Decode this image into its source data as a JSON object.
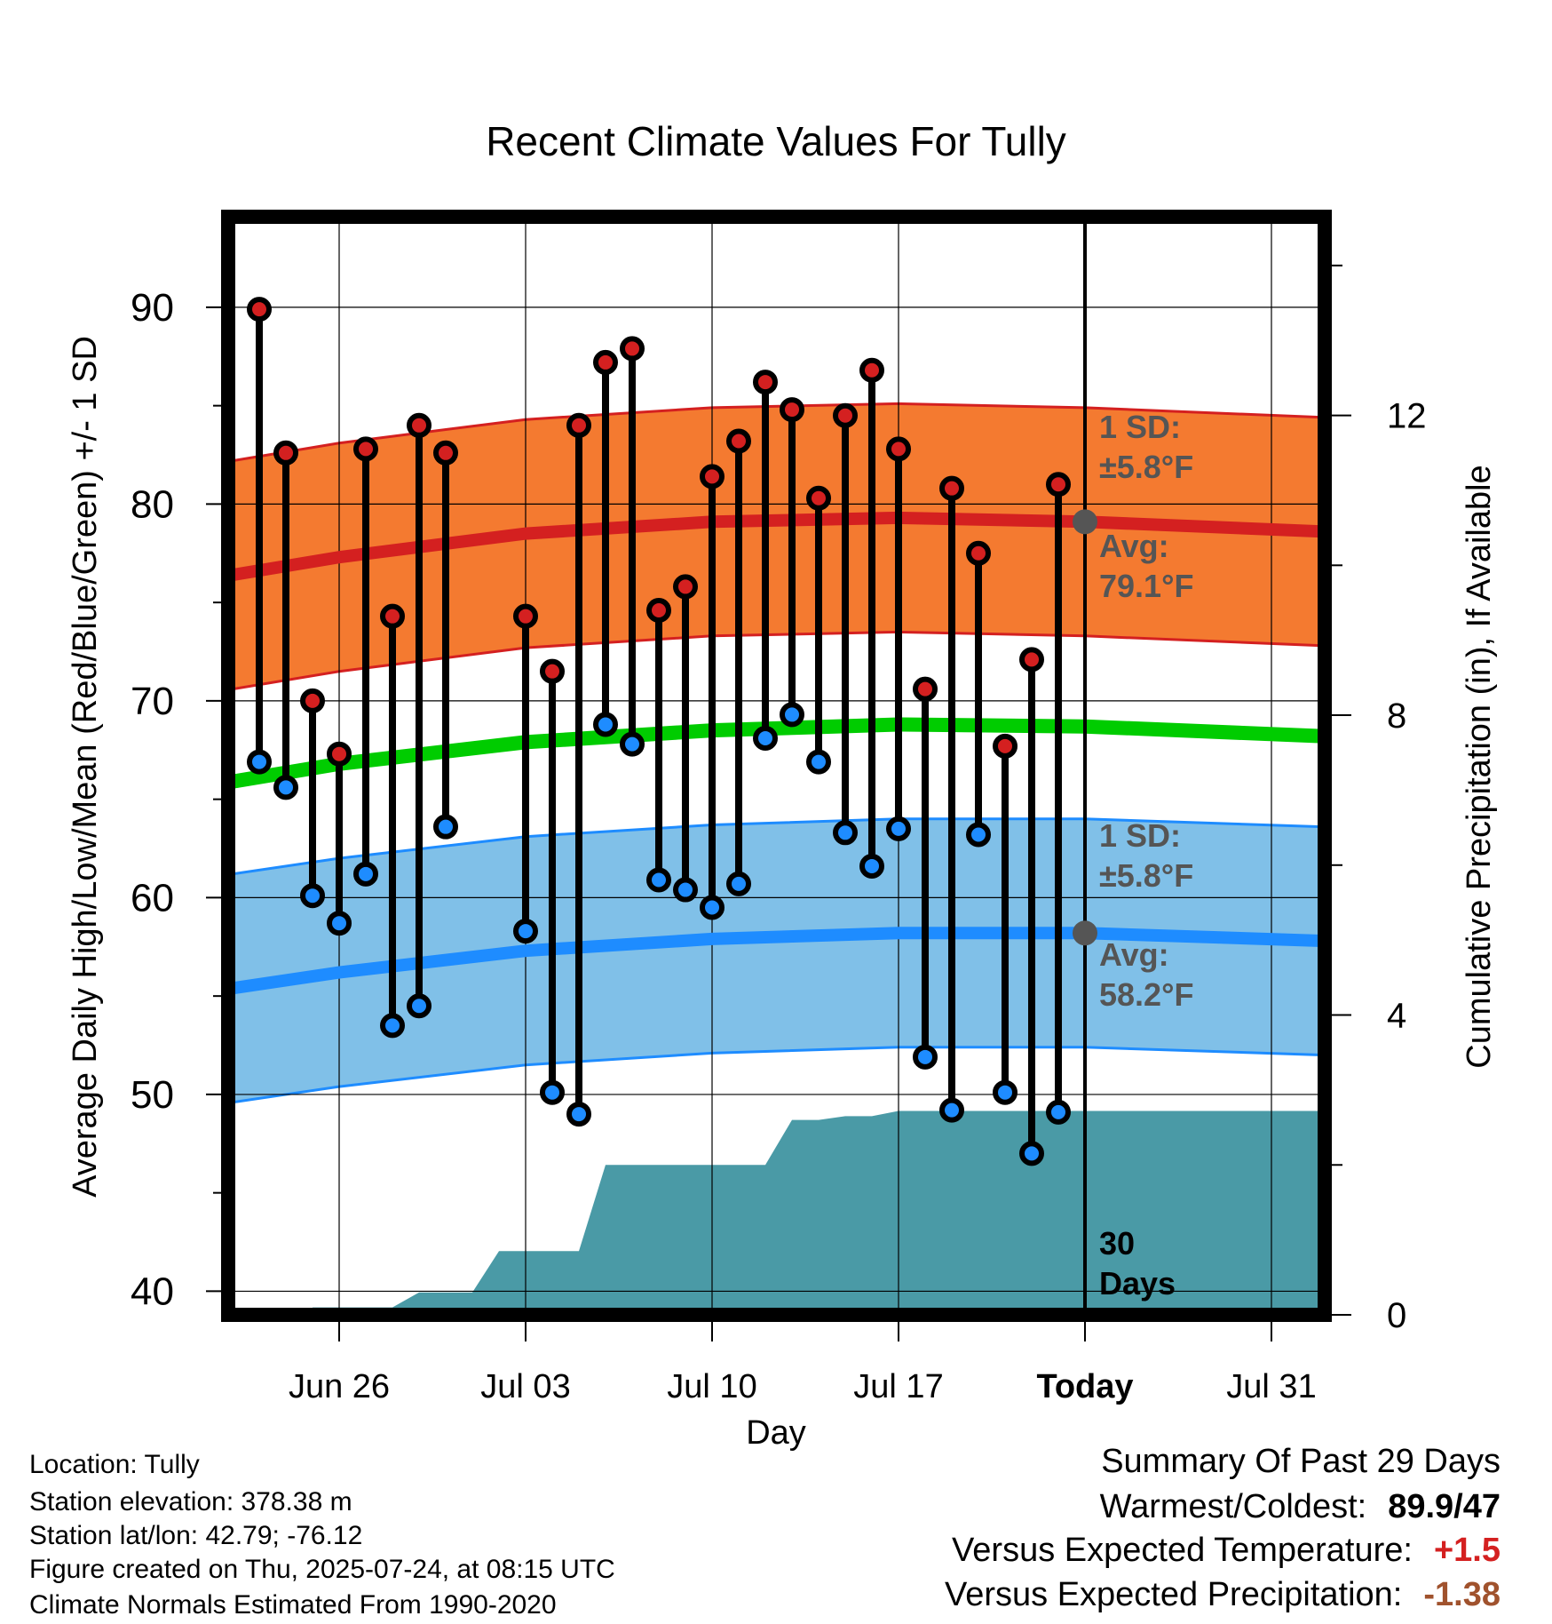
{
  "chart_data": {
    "type": "line",
    "title": "Recent Climate Values For Tully",
    "xlabel": "Day",
    "ylabel": "Average Daily High/Low/Mean (Red/Blue/Green) +/- 1 SD",
    "y2label": "Cumulative Precipitation (in), If Available",
    "ylim": [
      38.8,
      94.6
    ],
    "y2lim": [
      0,
      14.65
    ],
    "x_range": [
      "2025-06-22",
      "2025-08-02"
    ],
    "yticks": [
      40,
      50,
      60,
      70,
      80,
      90
    ],
    "y2ticks": [
      0,
      4,
      8,
      12
    ],
    "xticks": [
      {
        "date": "2025-06-26",
        "label": "Jun 26"
      },
      {
        "date": "2025-07-03",
        "label": "Jul 03"
      },
      {
        "date": "2025-07-10",
        "label": "Jul 10"
      },
      {
        "date": "2025-07-17",
        "label": "Jul 17"
      },
      {
        "date": "2025-07-24",
        "label": "Today"
      },
      {
        "date": "2025-07-31",
        "label": "Jul 31"
      }
    ],
    "grid": true,
    "today": "2025-07-24",
    "daily": [
      {
        "date": "2025-06-23",
        "high": 89.9,
        "low": 66.9
      },
      {
        "date": "2025-06-24",
        "high": 82.6,
        "low": 65.6
      },
      {
        "date": "2025-06-25",
        "high": 70.0,
        "low": 60.1
      },
      {
        "date": "2025-06-26",
        "high": 67.3,
        "low": 58.7
      },
      {
        "date": "2025-06-27",
        "high": 82.8,
        "low": 61.2
      },
      {
        "date": "2025-06-28",
        "high": 74.3,
        "low": 53.5
      },
      {
        "date": "2025-06-29",
        "high": 84.0,
        "low": 54.5
      },
      {
        "date": "2025-06-30",
        "high": 82.6,
        "low": 63.6
      },
      {
        "date": "2025-07-03",
        "high": 74.3,
        "low": 58.3
      },
      {
        "date": "2025-07-04",
        "high": 71.5,
        "low": 50.1
      },
      {
        "date": "2025-07-05",
        "high": 84.0,
        "low": 49.0
      },
      {
        "date": "2025-07-06",
        "high": 87.2,
        "low": 68.8
      },
      {
        "date": "2025-07-07",
        "high": 87.9,
        "low": 67.8
      },
      {
        "date": "2025-07-08",
        "high": 74.6,
        "low": 60.9
      },
      {
        "date": "2025-07-09",
        "high": 75.8,
        "low": 60.4
      },
      {
        "date": "2025-07-10",
        "high": 81.4,
        "low": 59.5
      },
      {
        "date": "2025-07-11",
        "high": 83.2,
        "low": 60.7
      },
      {
        "date": "2025-07-12",
        "high": 86.2,
        "low": 68.1
      },
      {
        "date": "2025-07-13",
        "high": 84.8,
        "low": 69.3
      },
      {
        "date": "2025-07-14",
        "high": 80.3,
        "low": 66.9
      },
      {
        "date": "2025-07-15",
        "high": 84.5,
        "low": 63.3
      },
      {
        "date": "2025-07-16",
        "high": 86.8,
        "low": 61.6
      },
      {
        "date": "2025-07-17",
        "high": 82.8,
        "low": 63.5
      },
      {
        "date": "2025-07-18",
        "high": 70.6,
        "low": 51.9
      },
      {
        "date": "2025-07-19",
        "high": 80.8,
        "low": 49.2
      },
      {
        "date": "2025-07-20",
        "high": 77.5,
        "low": 63.2
      },
      {
        "date": "2025-07-21",
        "high": 67.7,
        "low": 50.1
      },
      {
        "date": "2025-07-22",
        "high": 72.1,
        "low": 47.0
      },
      {
        "date": "2025-07-23",
        "high": 81.0,
        "low": 49.1
      }
    ],
    "normal_high": [
      {
        "date": "2025-06-22",
        "value": 76.4
      },
      {
        "date": "2025-06-26",
        "value": 77.3
      },
      {
        "date": "2025-07-03",
        "value": 78.5
      },
      {
        "date": "2025-07-10",
        "value": 79.1
      },
      {
        "date": "2025-07-17",
        "value": 79.3
      },
      {
        "date": "2025-07-24",
        "value": 79.1
      },
      {
        "date": "2025-08-02",
        "value": 78.6
      }
    ],
    "normal_low": [
      {
        "date": "2025-06-22",
        "value": 55.4
      },
      {
        "date": "2025-06-26",
        "value": 56.2
      },
      {
        "date": "2025-07-03",
        "value": 57.3
      },
      {
        "date": "2025-07-10",
        "value": 57.9
      },
      {
        "date": "2025-07-17",
        "value": 58.2
      },
      {
        "date": "2025-07-24",
        "value": 58.2
      },
      {
        "date": "2025-08-02",
        "value": 57.8
      }
    ],
    "normal_mean": [
      {
        "date": "2025-06-22",
        "value": 65.9
      },
      {
        "date": "2025-06-26",
        "value": 66.8
      },
      {
        "date": "2025-07-03",
        "value": 67.9
      },
      {
        "date": "2025-07-10",
        "value": 68.5
      },
      {
        "date": "2025-07-17",
        "value": 68.8
      },
      {
        "date": "2025-07-24",
        "value": 68.7
      },
      {
        "date": "2025-08-02",
        "value": 68.2
      }
    ],
    "sd": 5.8,
    "precip_cumulative": [
      {
        "date": "2025-06-25",
        "value": 0.1
      },
      {
        "date": "2025-06-28",
        "value": 0.1
      },
      {
        "date": "2025-06-29",
        "value": 0.3
      },
      {
        "date": "2025-07-01",
        "value": 0.3
      },
      {
        "date": "2025-07-02",
        "value": 0.85
      },
      {
        "date": "2025-07-05",
        "value": 0.85
      },
      {
        "date": "2025-07-06",
        "value": 2.0
      },
      {
        "date": "2025-07-12",
        "value": 2.0
      },
      {
        "date": "2025-07-13",
        "value": 2.6
      },
      {
        "date": "2025-07-14",
        "value": 2.6
      },
      {
        "date": "2025-07-15",
        "value": 2.65
      },
      {
        "date": "2025-07-16",
        "value": 2.65
      },
      {
        "date": "2025-07-17",
        "value": 2.72
      },
      {
        "date": "2025-08-02",
        "value": 2.72
      }
    ],
    "colors": {
      "high_band": "#f47a30",
      "high_line": "#d42020",
      "low_band": "#80c0e8",
      "low_line": "#1e8cff",
      "mean_line": "#00cc00",
      "precip": "#4a9aa6",
      "high_dot": "#d42020",
      "low_dot": "#1e8cff",
      "annotation": "#555555"
    },
    "annotations": {
      "high_sd_1": "1 SD:",
      "high_sd_2": "±5.8°F",
      "high_avg_1": "Avg:",
      "high_avg_2": "79.1°F",
      "low_sd_1": "1 SD:",
      "low_sd_2": "±5.8°F",
      "low_avg_1": "Avg:",
      "low_avg_2": "58.2°F",
      "days_1": "30",
      "days_2": "Days"
    }
  },
  "footer": {
    "location": "Location: Tully",
    "elevation": "Station elevation: 378.38 m",
    "latlon": "Station lat/lon: 42.79; -76.12",
    "created": "Figure created on Thu, 2025-07-24, at 08:15 UTC",
    "normals": "Climate Normals Estimated From 1990-2020"
  },
  "summary": {
    "title": "Summary Of Past 29 Days",
    "warm_label": "Warmest/Coldest:",
    "warm_value": "89.9/47",
    "temp_label": "Versus Expected Temperature:",
    "temp_value": "+1.5",
    "temp_color": "#d42020",
    "precip_label": "Versus Expected Precipitation:",
    "precip_value": "-1.38",
    "precip_color": "#a0522d"
  }
}
